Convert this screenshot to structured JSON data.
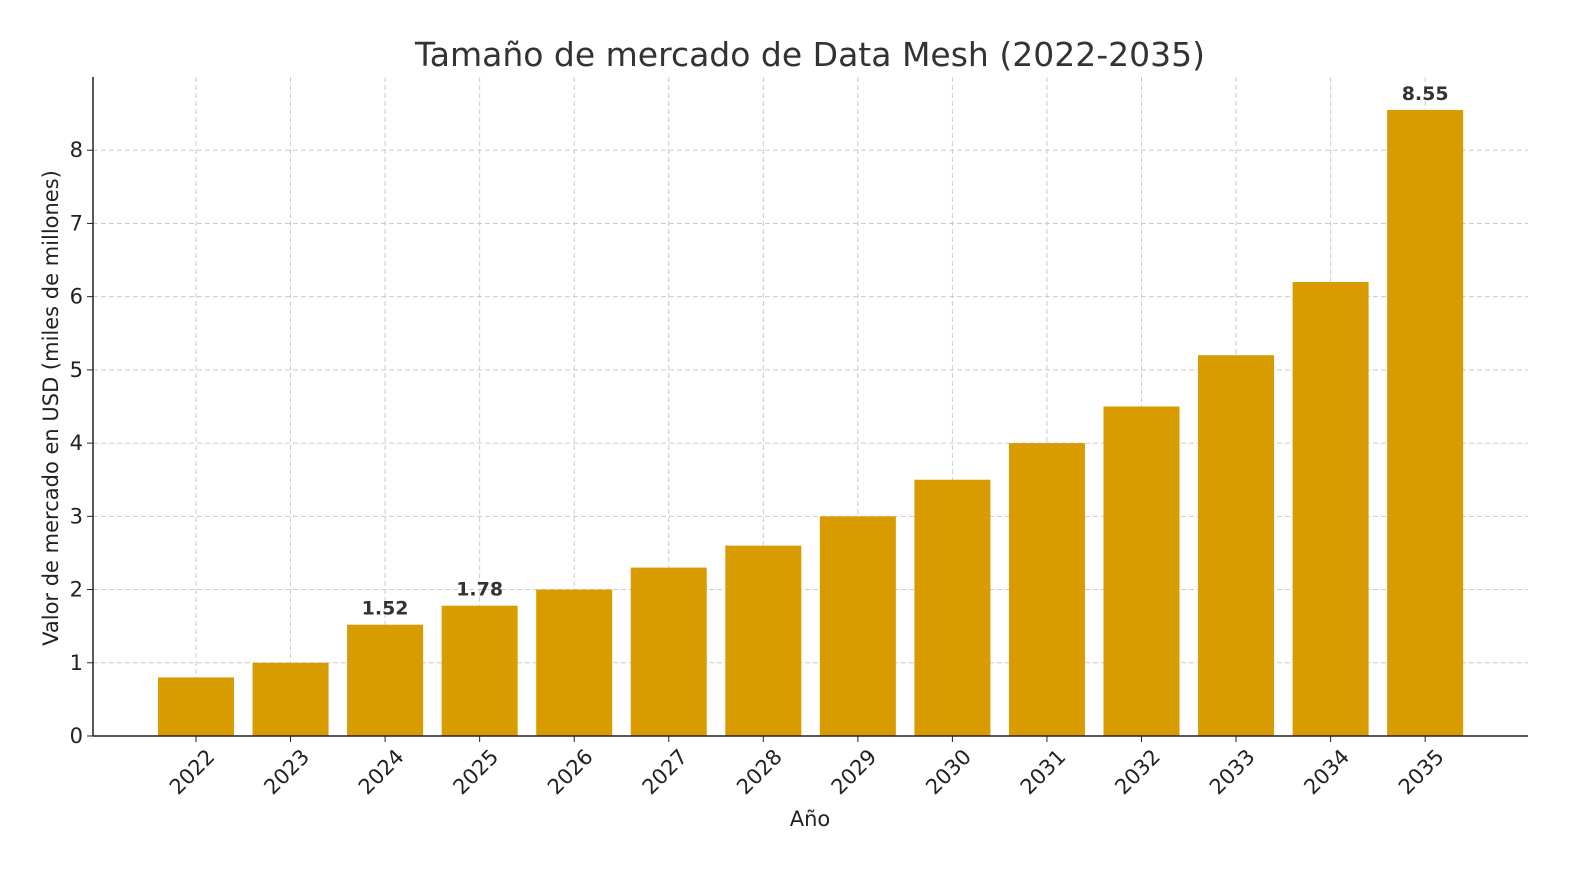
{
  "chart_data": {
    "type": "bar",
    "title": "Tamaño de mercado de Data Mesh (2022-2035)",
    "x_label": "Año",
    "y_label": "Valor de mercado en USD (miles de millones)",
    "categories": [
      "2022",
      "2023",
      "2024",
      "2025",
      "2026",
      "2027",
      "2028",
      "2029",
      "2030",
      "2031",
      "2032",
      "2033",
      "2034",
      "2035"
    ],
    "values": [
      0.8,
      1.0,
      1.52,
      1.78,
      2.0,
      2.3,
      2.6,
      3.0,
      3.5,
      4.0,
      4.5,
      5.2,
      6.2,
      8.55
    ],
    "value_labels": [
      null,
      null,
      "1.52",
      "1.78",
      null,
      null,
      null,
      null,
      null,
      null,
      null,
      null,
      null,
      "8.55"
    ],
    "color": "#d89c00",
    "ylim": [
      0,
      9
    ],
    "yticks": [
      0,
      1,
      2,
      3,
      4,
      5,
      6,
      7,
      8
    ],
    "grid": true
  }
}
